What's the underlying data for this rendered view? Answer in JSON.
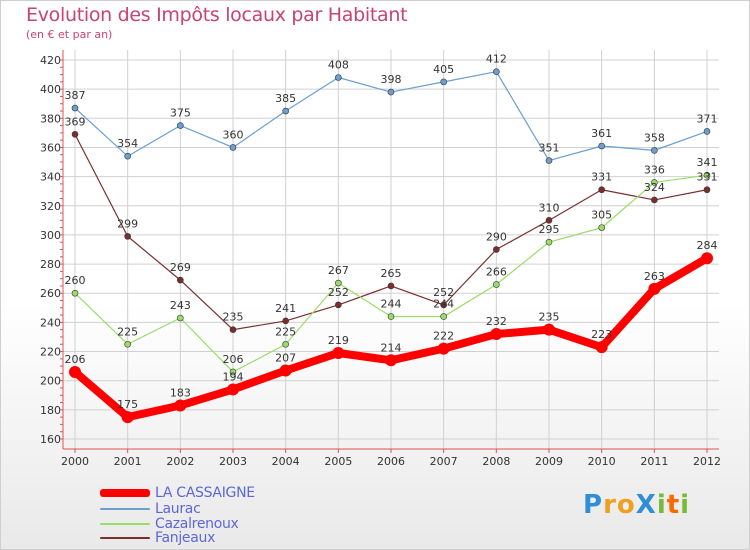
{
  "chart_data": {
    "type": "line",
    "title": "Evolution des Impôts locaux par Habitant",
    "subtitle": "(en € et par an)",
    "x": [
      "2000",
      "2001",
      "2002",
      "2003",
      "2004",
      "2005",
      "2006",
      "2007",
      "2008",
      "2009",
      "2010",
      "2011",
      "2012"
    ],
    "ylim": [
      160,
      420
    ],
    "yticks": [
      160,
      180,
      200,
      220,
      240,
      260,
      280,
      300,
      320,
      340,
      360,
      380,
      400,
      420
    ],
    "grid": true,
    "legend_position": "bottom-left",
    "series": [
      {
        "name": "LA CASSAIGNE",
        "color": "#ff0000",
        "values": [
          206,
          175,
          183,
          194,
          207,
          219,
          214,
          222,
          232,
          235,
          223,
          263,
          284
        ]
      },
      {
        "name": "Laurac",
        "color": "#6a9fd0",
        "values": [
          387,
          354,
          375,
          360,
          385,
          408,
          398,
          405,
          412,
          351,
          361,
          358,
          371
        ]
      },
      {
        "name": "Cazalrenoux",
        "color": "#99dd66",
        "values": [
          260,
          225,
          243,
          206,
          225,
          267,
          244,
          244,
          266,
          295,
          305,
          336,
          341
        ]
      },
      {
        "name": "Fanjeaux",
        "color": "#7a2e2e",
        "values": [
          369,
          299,
          269,
          235,
          241,
          252,
          265,
          252,
          290,
          310,
          331,
          324,
          331
        ]
      }
    ]
  },
  "logo": {
    "text": "ProXiti",
    "letters": [
      "P",
      "r",
      "o",
      "X",
      "i",
      "t",
      "i"
    ],
    "colors": [
      "#2e8fd6",
      "#f0a020",
      "#f0a020",
      "#2e8fd6",
      "#77bb33",
      "#ff6600",
      "#77bb33"
    ]
  }
}
